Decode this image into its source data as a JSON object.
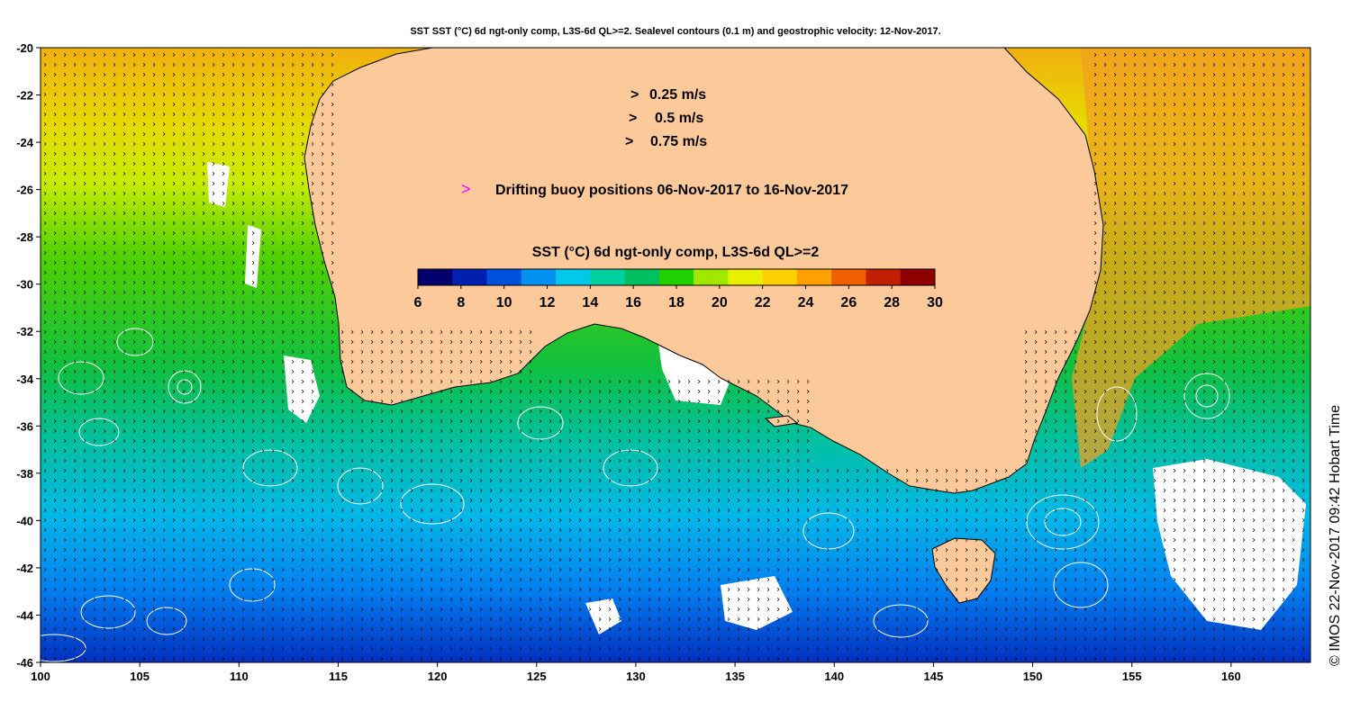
{
  "title": "SST SST (°C) 6d ngt-only comp, L3S-6d QL>=2. Sealevel contours (0.1 m) and geostrophic velocity: 12-Nov-2017.",
  "credit": "© IMOS 22-Nov-2017 09:42 Hobart Time",
  "map": {
    "lon_range": [
      100,
      164
    ],
    "lat_range": [
      -46,
      -20
    ],
    "x_ticks": [
      "100",
      "105",
      "110",
      "115",
      "120",
      "125",
      "130",
      "135",
      "140",
      "145",
      "150",
      "155",
      "160"
    ],
    "y_ticks": [
      "-20",
      "-22",
      "-24",
      "-26",
      "-28",
      "-30",
      "-32",
      "-34",
      "-36",
      "-38",
      "-40",
      "-42",
      "-44",
      "-46"
    ],
    "land_color": "#fcc99a",
    "cloud_color": "#ffffff",
    "contour_color": "#ffffff"
  },
  "velocity_legend": [
    {
      "label": "0.25 m/s",
      "symbol": ">"
    },
    {
      "label": "0.5 m/s",
      "symbol": ">"
    },
    {
      "label": "0.75 m/s",
      "symbol": ">"
    }
  ],
  "buoy_legend": {
    "symbol": ">",
    "label": "Drifting buoy positions 06-Nov-2017 to 16-Nov-2017",
    "color": "#ff00ff"
  },
  "colorbar": {
    "title": "SST (°C) 6d ngt-only comp, L3S-6d QL>=2",
    "min": 6,
    "max": 30,
    "ticks": [
      "6",
      "8",
      "10",
      "12",
      "14",
      "16",
      "18",
      "20",
      "22",
      "24",
      "26",
      "28",
      "30"
    ],
    "colors": [
      "#00006e",
      "#0020b0",
      "#0050e0",
      "#0090f0",
      "#00c8e8",
      "#00d0a0",
      "#00c060",
      "#20d000",
      "#a0e800",
      "#e8f000",
      "#ffd000",
      "#ffa000",
      "#f06000",
      "#c02000",
      "#900000"
    ]
  }
}
